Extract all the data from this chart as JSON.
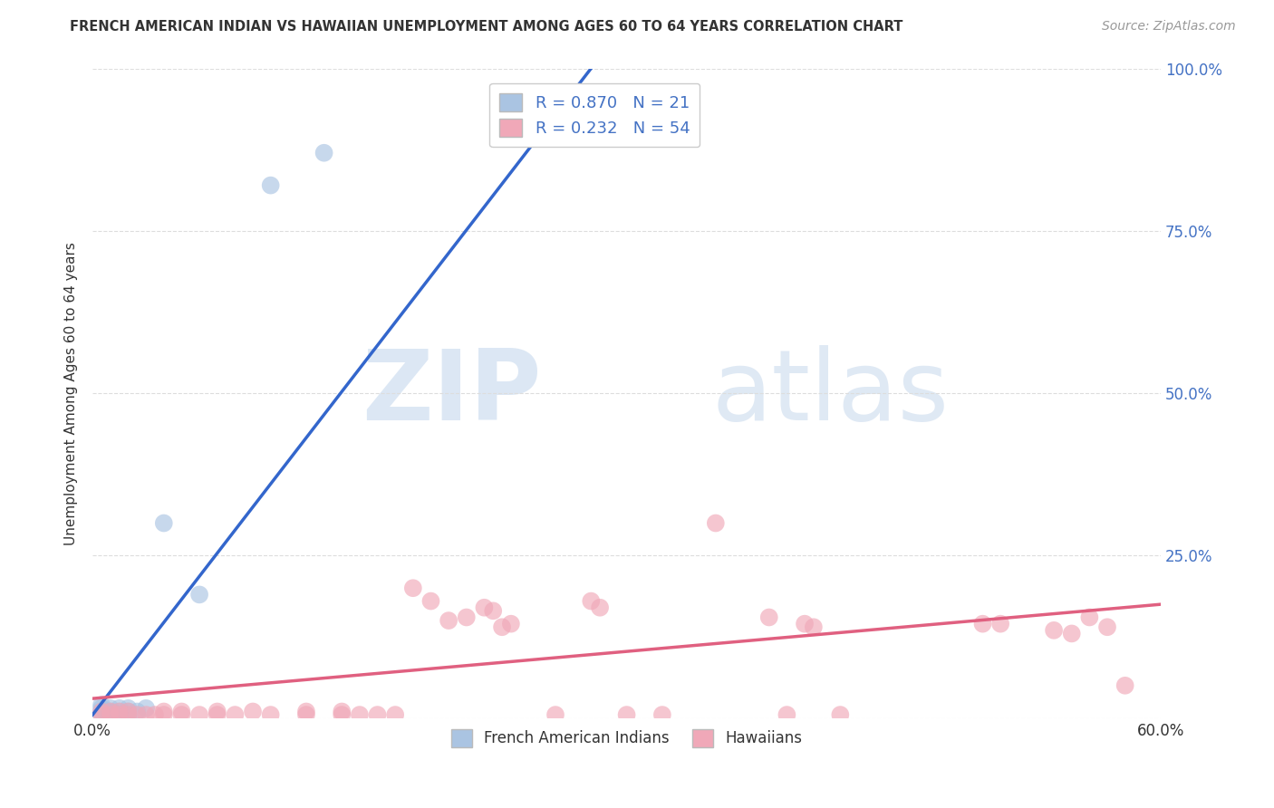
{
  "title": "FRENCH AMERICAN INDIAN VS HAWAIIAN UNEMPLOYMENT AMONG AGES 60 TO 64 YEARS CORRELATION CHART",
  "source": "Source: ZipAtlas.com",
  "ylabel": "Unemployment Among Ages 60 to 64 years",
  "xlim": [
    0.0,
    0.6
  ],
  "ylim": [
    0.0,
    1.0
  ],
  "xticks": [
    0.0,
    0.1,
    0.2,
    0.3,
    0.4,
    0.5,
    0.6
  ],
  "xticklabels": [
    "0.0%",
    "",
    "",
    "",
    "",
    "",
    "60.0%"
  ],
  "yticks": [
    0.0,
    0.25,
    0.5,
    0.75,
    1.0
  ],
  "yticklabels": [
    "",
    "25.0%",
    "50.0%",
    "75.0%",
    "100.0%"
  ],
  "blue_R": 0.87,
  "blue_N": 21,
  "pink_R": 0.232,
  "pink_N": 54,
  "blue_color": "#aac4e2",
  "pink_color": "#f0a8b8",
  "blue_line_color": "#3366cc",
  "pink_line_color": "#e06080",
  "legend_label_blue": "French American Indians",
  "legend_label_pink": "Hawaiians",
  "blue_points": [
    [
      0.005,
      0.005
    ],
    [
      0.005,
      0.01
    ],
    [
      0.005,
      0.015
    ],
    [
      0.005,
      0.02
    ],
    [
      0.008,
      0.005
    ],
    [
      0.008,
      0.01
    ],
    [
      0.01,
      0.005
    ],
    [
      0.01,
      0.01
    ],
    [
      0.01,
      0.015
    ],
    [
      0.012,
      0.008
    ],
    [
      0.015,
      0.01
    ],
    [
      0.015,
      0.015
    ],
    [
      0.02,
      0.005
    ],
    [
      0.02,
      0.01
    ],
    [
      0.02,
      0.015
    ],
    [
      0.025,
      0.01
    ],
    [
      0.03,
      0.015
    ],
    [
      0.04,
      0.3
    ],
    [
      0.06,
      0.19
    ],
    [
      0.1,
      0.82
    ],
    [
      0.13,
      0.87
    ]
  ],
  "pink_points": [
    [
      0.005,
      0.005
    ],
    [
      0.005,
      0.01
    ],
    [
      0.01,
      0.005
    ],
    [
      0.01,
      0.01
    ],
    [
      0.015,
      0.005
    ],
    [
      0.015,
      0.01
    ],
    [
      0.02,
      0.005
    ],
    [
      0.02,
      0.01
    ],
    [
      0.025,
      0.005
    ],
    [
      0.03,
      0.005
    ],
    [
      0.035,
      0.005
    ],
    [
      0.04,
      0.005
    ],
    [
      0.04,
      0.01
    ],
    [
      0.05,
      0.005
    ],
    [
      0.05,
      0.01
    ],
    [
      0.06,
      0.005
    ],
    [
      0.07,
      0.005
    ],
    [
      0.07,
      0.01
    ],
    [
      0.08,
      0.005
    ],
    [
      0.09,
      0.01
    ],
    [
      0.1,
      0.005
    ],
    [
      0.12,
      0.005
    ],
    [
      0.12,
      0.01
    ],
    [
      0.14,
      0.005
    ],
    [
      0.14,
      0.01
    ],
    [
      0.15,
      0.005
    ],
    [
      0.16,
      0.005
    ],
    [
      0.17,
      0.005
    ],
    [
      0.18,
      0.2
    ],
    [
      0.19,
      0.18
    ],
    [
      0.2,
      0.15
    ],
    [
      0.21,
      0.155
    ],
    [
      0.22,
      0.17
    ],
    [
      0.225,
      0.165
    ],
    [
      0.23,
      0.14
    ],
    [
      0.235,
      0.145
    ],
    [
      0.26,
      0.005
    ],
    [
      0.28,
      0.18
    ],
    [
      0.285,
      0.17
    ],
    [
      0.3,
      0.005
    ],
    [
      0.32,
      0.005
    ],
    [
      0.35,
      0.3
    ],
    [
      0.38,
      0.155
    ],
    [
      0.39,
      0.005
    ],
    [
      0.4,
      0.145
    ],
    [
      0.405,
      0.14
    ],
    [
      0.42,
      0.005
    ],
    [
      0.5,
      0.145
    ],
    [
      0.51,
      0.145
    ],
    [
      0.54,
      0.135
    ],
    [
      0.55,
      0.13
    ],
    [
      0.56,
      0.155
    ],
    [
      0.57,
      0.14
    ],
    [
      0.58,
      0.05
    ]
  ],
  "blue_trend_x": [
    0.0,
    0.28
  ],
  "blue_trend_y": [
    0.005,
    1.0
  ],
  "pink_trend_x": [
    0.0,
    0.6
  ],
  "pink_trend_y": [
    0.03,
    0.175
  ],
  "background_color": "#ffffff",
  "grid_color": "#dddddd",
  "ytick_color": "#4472c4"
}
